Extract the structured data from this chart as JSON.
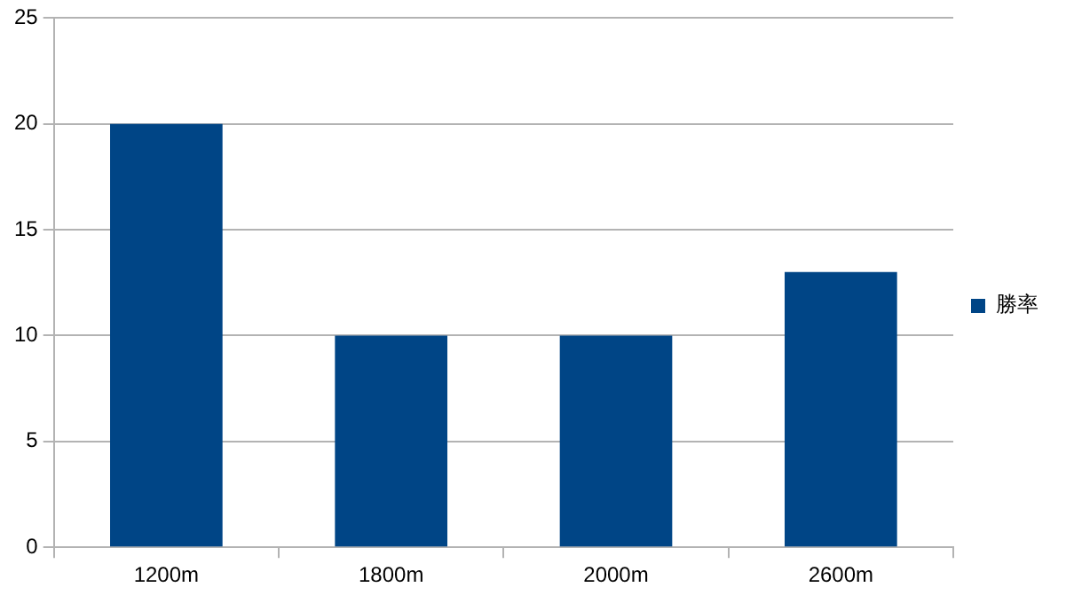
{
  "chart_data": {
    "type": "bar",
    "categories": [
      "1200m",
      "1800m",
      "2000m",
      "2600m"
    ],
    "series": [
      {
        "name": "勝率",
        "color": "#004586",
        "values": [
          20,
          10,
          10,
          13
        ]
      }
    ],
    "ylim": [
      0,
      25
    ],
    "yticks": [
      0,
      5,
      10,
      15,
      20,
      25
    ],
    "grid": "y",
    "legend": "right"
  }
}
